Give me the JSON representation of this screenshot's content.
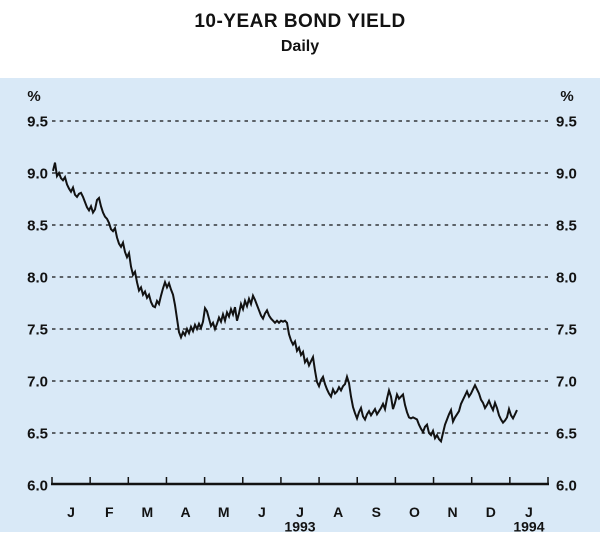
{
  "title": "10-YEAR BOND YIELD",
  "subtitle": "Daily",
  "chart_data": {
    "type": "line",
    "title": "10-YEAR BOND YIELD",
    "subtitle": "Daily",
    "unit_label": "%",
    "ylim": [
      6.0,
      9.5
    ],
    "grid": "dotted-horizontal",
    "legend": "none",
    "y_axis_sides": "both",
    "y_ticks": [
      {
        "value": 9.5,
        "label": "9.5"
      },
      {
        "value": 9.0,
        "label": "9.0"
      },
      {
        "value": 8.5,
        "label": "8.5"
      },
      {
        "value": 8.0,
        "label": "8.0"
      },
      {
        "value": 7.5,
        "label": "7.5"
      },
      {
        "value": 7.0,
        "label": "7.0"
      },
      {
        "value": 6.5,
        "label": "6.5"
      },
      {
        "value": 6.0,
        "label": "6.0"
      }
    ],
    "x_month_labels": [
      "J",
      "F",
      "M",
      "A",
      "M",
      "J",
      "J",
      "A",
      "S",
      "O",
      "N",
      "D",
      "J"
    ],
    "x_year_labels": [
      {
        "label": "1993",
        "month_index": 6
      },
      {
        "label": "1994",
        "month_index": 12
      }
    ],
    "colors": {
      "background": "#d9e9f7",
      "line": "#121212",
      "text": "#121212"
    },
    "series": [
      {
        "values": [
          9.02,
          9.1,
          8.97,
          9.0,
          8.95,
          8.93,
          8.96,
          8.89,
          8.85,
          8.82,
          8.86,
          8.79,
          8.77,
          8.8,
          8.81,
          8.77,
          8.72,
          8.67,
          8.64,
          8.68,
          8.62,
          8.65,
          8.74,
          8.76,
          8.68,
          8.62,
          8.58,
          8.56,
          8.52,
          8.46,
          8.44,
          8.47,
          8.38,
          8.32,
          8.29,
          8.33,
          8.24,
          8.19,
          8.23,
          8.1,
          8.02,
          8.05,
          7.95,
          7.87,
          7.9,
          7.83,
          7.86,
          7.8,
          7.83,
          7.76,
          7.72,
          7.71,
          7.77,
          7.74,
          7.82,
          7.89,
          7.95,
          7.9,
          7.94,
          7.88,
          7.83,
          7.73,
          7.6,
          7.47,
          7.42,
          7.47,
          7.44,
          7.5,
          7.46,
          7.52,
          7.48,
          7.54,
          7.5,
          7.55,
          7.51,
          7.57,
          7.7,
          7.67,
          7.6,
          7.53,
          7.56,
          7.5,
          7.55,
          7.61,
          7.57,
          7.64,
          7.58,
          7.66,
          7.62,
          7.69,
          7.64,
          7.71,
          7.58,
          7.65,
          7.74,
          7.69,
          7.77,
          7.72,
          7.79,
          7.74,
          7.82,
          7.78,
          7.73,
          7.68,
          7.63,
          7.6,
          7.65,
          7.68,
          7.63,
          7.6,
          7.58,
          7.56,
          7.58,
          7.56,
          7.58,
          7.57,
          7.58,
          7.56,
          7.45,
          7.39,
          7.35,
          7.38,
          7.29,
          7.32,
          7.25,
          7.28,
          7.18,
          7.21,
          7.15,
          7.19,
          7.23,
          7.1,
          6.99,
          6.95,
          7.01,
          7.04,
          6.97,
          6.92,
          6.88,
          6.85,
          6.92,
          6.88,
          6.9,
          6.94,
          6.91,
          6.95,
          6.97,
          7.04,
          6.98,
          6.85,
          6.75,
          6.69,
          6.64,
          6.7,
          6.74,
          6.66,
          6.63,
          6.68,
          6.71,
          6.67,
          6.7,
          6.73,
          6.68,
          6.71,
          6.74,
          6.78,
          6.73,
          6.83,
          6.91,
          6.85,
          6.73,
          6.79,
          6.87,
          6.83,
          6.85,
          6.87,
          6.77,
          6.7,
          6.65,
          6.64,
          6.65,
          6.64,
          6.63,
          6.58,
          6.54,
          6.51,
          6.56,
          6.58,
          6.5,
          6.48,
          6.52,
          6.45,
          6.48,
          6.44,
          6.42,
          6.5,
          6.58,
          6.63,
          6.68,
          6.72,
          6.61,
          6.65,
          6.68,
          6.71,
          6.78,
          6.82,
          6.86,
          6.9,
          6.85,
          6.88,
          6.92,
          6.96,
          6.92,
          6.88,
          6.82,
          6.79,
          6.74,
          6.77,
          6.81,
          6.76,
          6.72,
          6.79,
          6.74,
          6.67,
          6.63,
          6.6,
          6.62,
          6.65,
          6.73,
          6.67,
          6.64,
          6.68,
          6.72
        ]
      }
    ]
  }
}
